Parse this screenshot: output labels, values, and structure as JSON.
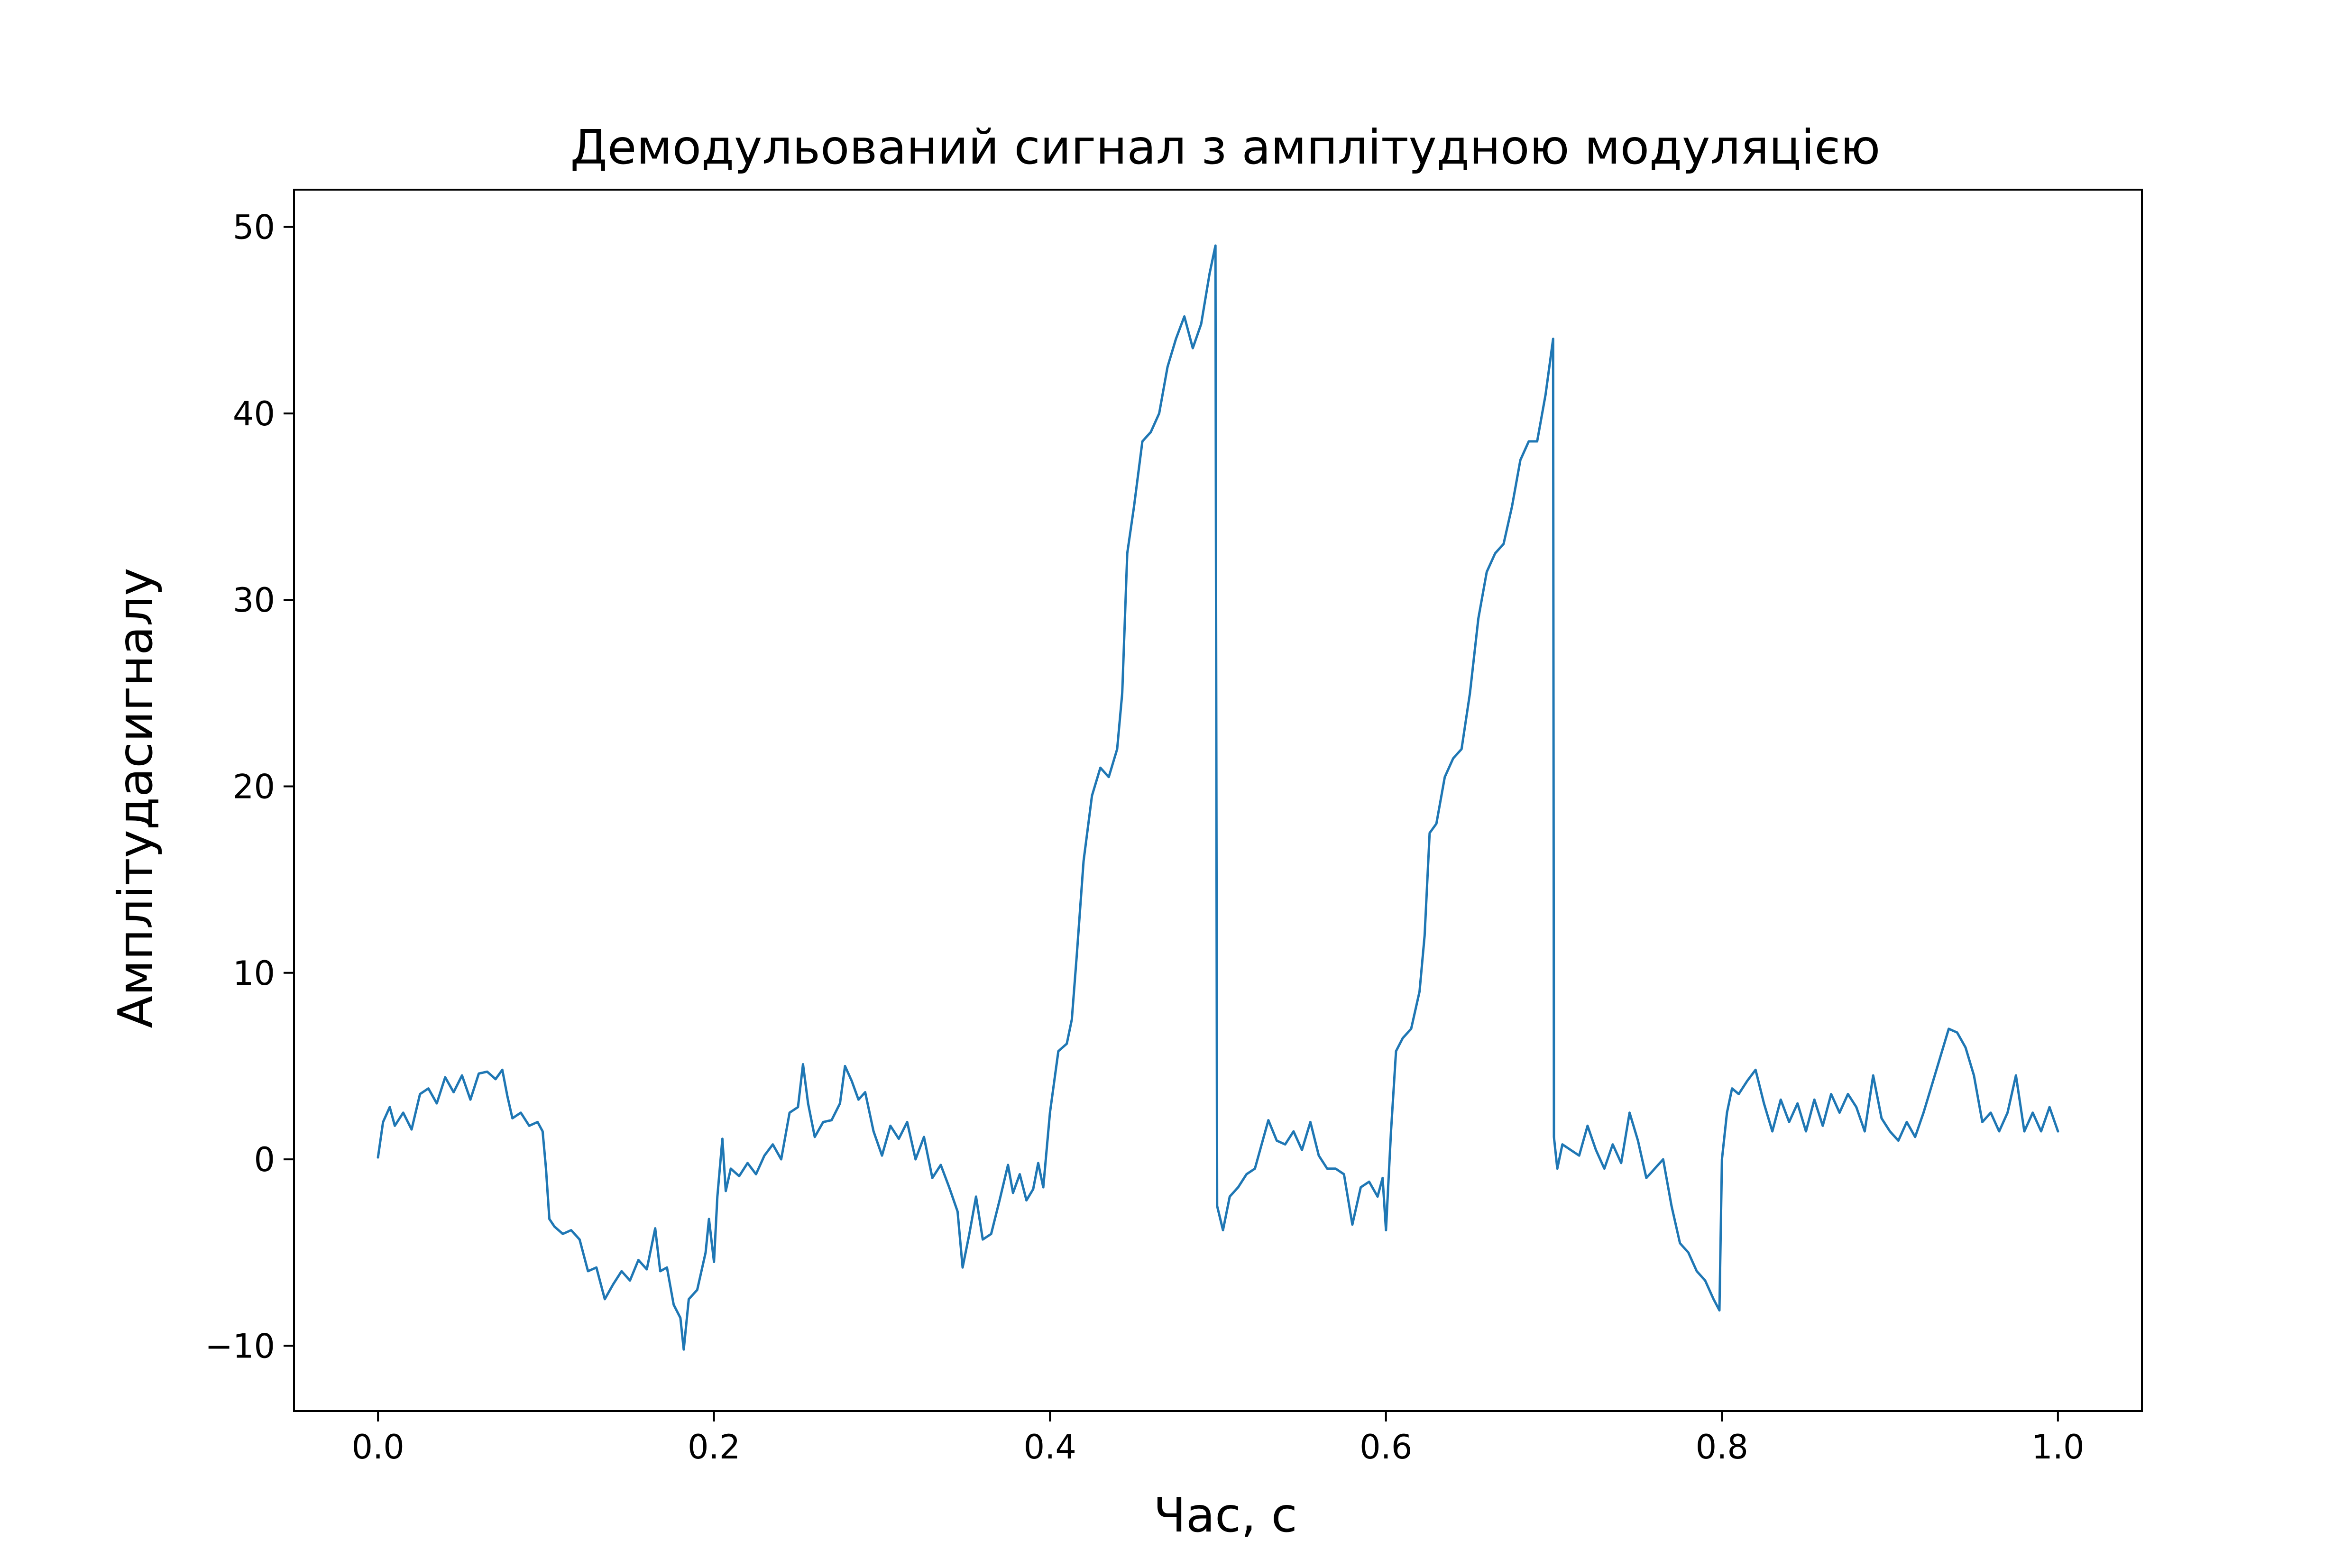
{
  "chart_data": {
    "type": "line",
    "title": "Демодульований сигнал з амплітудною модуляцією",
    "xlabel": "Час, с",
    "ylabel": "Амплітудасигналу",
    "xlim": [
      -0.05,
      1.05
    ],
    "ylim": [
      -13.5,
      52
    ],
    "x_ticks": [
      0.0,
      0.2,
      0.4,
      0.6,
      0.8,
      1.0
    ],
    "x_tick_labels": [
      "0.0",
      "0.2",
      "0.4",
      "0.6",
      "0.8",
      "1.0"
    ],
    "y_ticks": [
      -10,
      0,
      10,
      20,
      30,
      40,
      50
    ],
    "y_tick_labels": [
      "−10",
      "0",
      "10",
      "20",
      "30",
      "40",
      "50"
    ],
    "grid": false,
    "series": [
      {
        "color": "#1f77b4",
        "points": [
          [
            0.0,
            0.1
          ],
          [
            0.003,
            2.0
          ],
          [
            0.007,
            2.8
          ],
          [
            0.01,
            1.8
          ],
          [
            0.015,
            2.5
          ],
          [
            0.02,
            1.6
          ],
          [
            0.025,
            3.5
          ],
          [
            0.03,
            3.8
          ],
          [
            0.035,
            3.0
          ],
          [
            0.04,
            4.4
          ],
          [
            0.045,
            3.6
          ],
          [
            0.05,
            4.5
          ],
          [
            0.055,
            3.2
          ],
          [
            0.06,
            4.6
          ],
          [
            0.065,
            4.7
          ],
          [
            0.07,
            4.3
          ],
          [
            0.074,
            4.8
          ],
          [
            0.077,
            3.4
          ],
          [
            0.08,
            2.2
          ],
          [
            0.085,
            2.5
          ],
          [
            0.09,
            1.8
          ],
          [
            0.095,
            2.0
          ],
          [
            0.098,
            1.5
          ],
          [
            0.1,
            -0.5
          ],
          [
            0.102,
            -3.2
          ],
          [
            0.105,
            -3.6
          ],
          [
            0.11,
            -4.0
          ],
          [
            0.115,
            -3.8
          ],
          [
            0.12,
            -4.3
          ],
          [
            0.125,
            -6.0
          ],
          [
            0.13,
            -5.8
          ],
          [
            0.135,
            -7.5
          ],
          [
            0.14,
            -6.7
          ],
          [
            0.145,
            -6.0
          ],
          [
            0.15,
            -6.5
          ],
          [
            0.155,
            -5.4
          ],
          [
            0.16,
            -5.9
          ],
          [
            0.165,
            -3.7
          ],
          [
            0.168,
            -6.0
          ],
          [
            0.172,
            -5.8
          ],
          [
            0.176,
            -7.8
          ],
          [
            0.18,
            -8.5
          ],
          [
            0.182,
            -10.2
          ],
          [
            0.185,
            -7.5
          ],
          [
            0.19,
            -7.0
          ],
          [
            0.195,
            -5.0
          ],
          [
            0.197,
            -3.2
          ],
          [
            0.2,
            -5.5
          ],
          [
            0.202,
            -2.0
          ],
          [
            0.205,
            1.1
          ],
          [
            0.207,
            -1.7
          ],
          [
            0.21,
            -0.5
          ],
          [
            0.215,
            -0.9
          ],
          [
            0.22,
            -0.2
          ],
          [
            0.225,
            -0.8
          ],
          [
            0.23,
            0.2
          ],
          [
            0.235,
            0.8
          ],
          [
            0.24,
            0.0
          ],
          [
            0.245,
            2.5
          ],
          [
            0.25,
            2.8
          ],
          [
            0.253,
            5.1
          ],
          [
            0.256,
            3.0
          ],
          [
            0.26,
            1.2
          ],
          [
            0.265,
            2.0
          ],
          [
            0.27,
            2.1
          ],
          [
            0.275,
            3.0
          ],
          [
            0.278,
            5.0
          ],
          [
            0.282,
            4.2
          ],
          [
            0.286,
            3.2
          ],
          [
            0.29,
            3.6
          ],
          [
            0.295,
            1.5
          ],
          [
            0.3,
            0.2
          ],
          [
            0.305,
            1.8
          ],
          [
            0.31,
            1.1
          ],
          [
            0.315,
            2.0
          ],
          [
            0.32,
            0.0
          ],
          [
            0.325,
            1.2
          ],
          [
            0.33,
            -1.0
          ],
          [
            0.335,
            -0.3
          ],
          [
            0.34,
            -1.5
          ],
          [
            0.345,
            -2.8
          ],
          [
            0.348,
            -5.8
          ],
          [
            0.352,
            -4.0
          ],
          [
            0.356,
            -2.0
          ],
          [
            0.36,
            -4.3
          ],
          [
            0.365,
            -4.0
          ],
          [
            0.37,
            -2.2
          ],
          [
            0.375,
            -0.3
          ],
          [
            0.378,
            -1.8
          ],
          [
            0.382,
            -0.8
          ],
          [
            0.386,
            -2.2
          ],
          [
            0.39,
            -1.6
          ],
          [
            0.393,
            -0.2
          ],
          [
            0.396,
            -1.5
          ],
          [
            0.4,
            2.5
          ],
          [
            0.405,
            5.8
          ],
          [
            0.41,
            6.2
          ],
          [
            0.413,
            7.5
          ],
          [
            0.416,
            11.0
          ],
          [
            0.42,
            16.0
          ],
          [
            0.425,
            19.5
          ],
          [
            0.43,
            21.0
          ],
          [
            0.435,
            20.5
          ],
          [
            0.44,
            22.0
          ],
          [
            0.443,
            25.0
          ],
          [
            0.446,
            32.5
          ],
          [
            0.45,
            35.0
          ],
          [
            0.455,
            38.5
          ],
          [
            0.46,
            39.0
          ],
          [
            0.465,
            40.0
          ],
          [
            0.47,
            42.5
          ],
          [
            0.475,
            44.0
          ],
          [
            0.48,
            45.2
          ],
          [
            0.485,
            43.5
          ],
          [
            0.49,
            44.8
          ],
          [
            0.495,
            47.5
          ],
          [
            0.4985,
            49.0
          ],
          [
            0.4995,
            -2.5
          ],
          [
            0.503,
            -3.8
          ],
          [
            0.507,
            -2.0
          ],
          [
            0.512,
            -1.5
          ],
          [
            0.517,
            -0.8
          ],
          [
            0.522,
            -0.5
          ],
          [
            0.526,
            0.8
          ],
          [
            0.53,
            2.1
          ],
          [
            0.535,
            1.0
          ],
          [
            0.54,
            0.8
          ],
          [
            0.545,
            1.5
          ],
          [
            0.55,
            0.5
          ],
          [
            0.555,
            2.0
          ],
          [
            0.56,
            0.2
          ],
          [
            0.565,
            -0.5
          ],
          [
            0.57,
            -0.5
          ],
          [
            0.575,
            -0.8
          ],
          [
            0.58,
            -3.5
          ],
          [
            0.585,
            -1.5
          ],
          [
            0.59,
            -1.2
          ],
          [
            0.595,
            -2.0
          ],
          [
            0.598,
            -1.0
          ],
          [
            0.6,
            -3.8
          ],
          [
            0.603,
            1.5
          ],
          [
            0.606,
            5.8
          ],
          [
            0.61,
            6.5
          ],
          [
            0.615,
            7.0
          ],
          [
            0.62,
            9.0
          ],
          [
            0.623,
            12.0
          ],
          [
            0.626,
            17.5
          ],
          [
            0.63,
            18.0
          ],
          [
            0.635,
            20.5
          ],
          [
            0.64,
            21.5
          ],
          [
            0.645,
            22.0
          ],
          [
            0.65,
            25.0
          ],
          [
            0.655,
            29.0
          ],
          [
            0.66,
            31.5
          ],
          [
            0.665,
            32.5
          ],
          [
            0.67,
            33.0
          ],
          [
            0.675,
            35.0
          ],
          [
            0.68,
            37.5
          ],
          [
            0.685,
            38.5
          ],
          [
            0.69,
            38.5
          ],
          [
            0.695,
            41.0
          ],
          [
            0.6995,
            44.0
          ],
          [
            0.7,
            1.2
          ],
          [
            0.702,
            -0.5
          ],
          [
            0.705,
            0.8
          ],
          [
            0.71,
            0.5
          ],
          [
            0.715,
            0.2
          ],
          [
            0.72,
            1.8
          ],
          [
            0.725,
            0.5
          ],
          [
            0.73,
            -0.5
          ],
          [
            0.735,
            0.8
          ],
          [
            0.74,
            -0.2
          ],
          [
            0.745,
            2.5
          ],
          [
            0.75,
            1.0
          ],
          [
            0.755,
            -1.0
          ],
          [
            0.76,
            -0.5
          ],
          [
            0.765,
            0.0
          ],
          [
            0.77,
            -2.5
          ],
          [
            0.775,
            -4.5
          ],
          [
            0.78,
            -5.0
          ],
          [
            0.785,
            -6.0
          ],
          [
            0.79,
            -6.5
          ],
          [
            0.795,
            -7.5
          ],
          [
            0.7985,
            -8.1
          ],
          [
            0.8,
            0.0
          ],
          [
            0.803,
            2.5
          ],
          [
            0.806,
            3.8
          ],
          [
            0.81,
            3.5
          ],
          [
            0.815,
            4.2
          ],
          [
            0.82,
            4.8
          ],
          [
            0.825,
            3.0
          ],
          [
            0.83,
            1.5
          ],
          [
            0.835,
            3.2
          ],
          [
            0.84,
            2.0
          ],
          [
            0.845,
            3.0
          ],
          [
            0.85,
            1.5
          ],
          [
            0.855,
            3.2
          ],
          [
            0.86,
            1.8
          ],
          [
            0.865,
            3.5
          ],
          [
            0.87,
            2.5
          ],
          [
            0.875,
            3.5
          ],
          [
            0.88,
            2.8
          ],
          [
            0.885,
            1.5
          ],
          [
            0.89,
            4.5
          ],
          [
            0.895,
            2.2
          ],
          [
            0.9,
            1.5
          ],
          [
            0.905,
            1.0
          ],
          [
            0.91,
            2.0
          ],
          [
            0.915,
            1.2
          ],
          [
            0.92,
            2.5
          ],
          [
            0.925,
            4.0
          ],
          [
            0.93,
            5.5
          ],
          [
            0.935,
            7.0
          ],
          [
            0.94,
            6.8
          ],
          [
            0.945,
            6.0
          ],
          [
            0.95,
            4.5
          ],
          [
            0.955,
            2.0
          ],
          [
            0.96,
            2.5
          ],
          [
            0.965,
            1.5
          ],
          [
            0.97,
            2.5
          ],
          [
            0.975,
            4.5
          ],
          [
            0.98,
            1.5
          ],
          [
            0.985,
            2.5
          ],
          [
            0.99,
            1.5
          ],
          [
            0.995,
            2.8
          ],
          [
            1.0,
            1.5
          ]
        ]
      }
    ]
  }
}
